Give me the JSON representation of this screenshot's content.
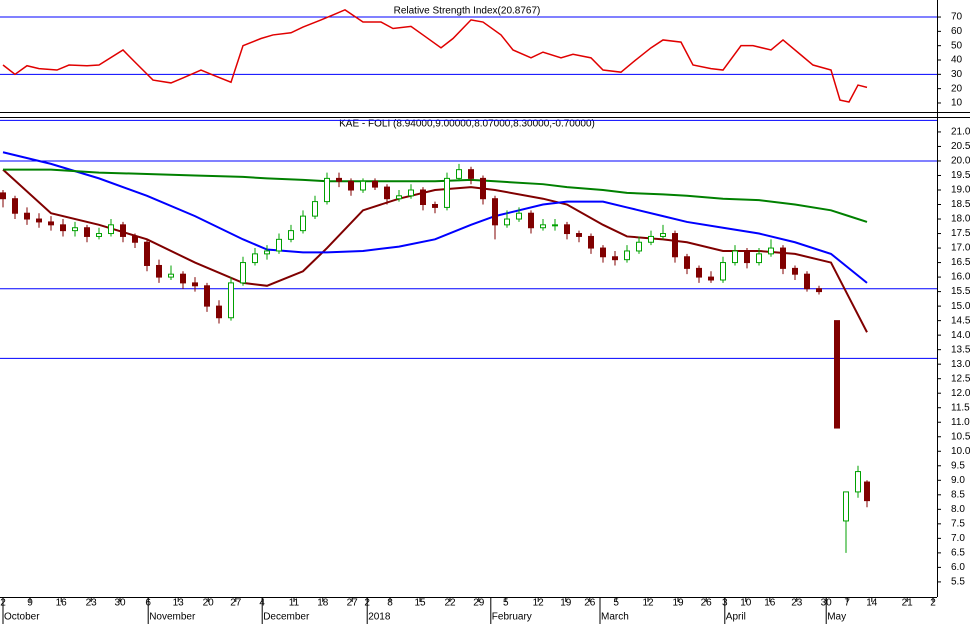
{
  "chart_data": [
    {
      "type": "line",
      "title": "Relative Strength Index(20.8767)",
      "color": "#e00000",
      "hline_color": "#0000ff",
      "xlim": [
        0,
        155
      ],
      "ylim": [
        3.7,
        78.4
      ],
      "yticks": [
        10,
        20,
        30,
        40,
        50,
        60,
        70
      ],
      "hlines": [
        70,
        30
      ],
      "x": [
        0,
        2,
        4,
        6,
        9,
        11,
        14,
        16,
        20,
        22,
        25,
        28,
        30,
        33,
        35,
        38,
        40,
        43,
        45,
        48,
        50,
        53,
        55,
        57,
        60,
        63,
        65,
        68,
        70,
        73,
        75,
        78,
        80,
        83,
        85,
        88,
        90,
        93,
        95,
        98,
        100,
        103,
        105,
        108,
        110,
        113,
        115,
        118,
        120,
        123,
        125,
        128,
        130,
        133,
        135,
        138,
        139.5,
        141,
        142.5,
        144
      ],
      "values": [
        36.5,
        30,
        36,
        34,
        33,
        36.5,
        36,
        36.5,
        47,
        38.5,
        26,
        24,
        27.5,
        33,
        29.5,
        24.5,
        50,
        55,
        57.5,
        59,
        63,
        68,
        71.5,
        75,
        66.5,
        66.5,
        62,
        63.5,
        57.5,
        48.5,
        55,
        68,
        66.5,
        57.5,
        47,
        41.5,
        45.5,
        41.5,
        44,
        41.5,
        33,
        31.5,
        38.5,
        48.5,
        54,
        52.5,
        36.5,
        34,
        33,
        50,
        50,
        47,
        54,
        43.5,
        36.5,
        33,
        12,
        10.7,
        22.5,
        20.9
      ]
    },
    {
      "type": "candlestick",
      "title": "KAE - FOLI (8.94000,9.00000,8.07000,8.30000,-0.70000)",
      "up_color": "#00a000",
      "down_color": "#800000",
      "hline_color": "#0000ff",
      "xlim": [
        0,
        155
      ],
      "ylim": [
        4.98,
        21.48
      ],
      "hlines": [
        21.4,
        20.0,
        15.6,
        13.2
      ],
      "yticks": [
        {
          "value": 5.5,
          "label": "5.5"
        },
        {
          "value": 6,
          "label": "6.0"
        },
        {
          "value": 6.5,
          "label": "6.5"
        },
        {
          "value": 7,
          "label": "7.0"
        },
        {
          "value": 7.5,
          "label": "7.5"
        },
        {
          "value": 8,
          "label": "8.0"
        },
        {
          "value": 8.5,
          "label": "8.5"
        },
        {
          "value": 9,
          "label": "9.0"
        },
        {
          "value": 9.5,
          "label": "9.5"
        },
        {
          "value": 10,
          "label": "10.0"
        },
        {
          "value": 10.5,
          "label": "10.5"
        },
        {
          "value": 11,
          "label": "11.0"
        },
        {
          "value": 11.5,
          "label": "11.5"
        },
        {
          "value": 12,
          "label": "12.0"
        },
        {
          "value": 12.5,
          "label": "12.5"
        },
        {
          "value": 13,
          "label": "13.0"
        },
        {
          "value": 13.5,
          "label": "13.5"
        },
        {
          "value": 14,
          "label": "14.0"
        },
        {
          "value": 14.5,
          "label": "14.5"
        },
        {
          "value": 15,
          "label": "15.0"
        },
        {
          "value": 15.5,
          "label": "15.5"
        },
        {
          "value": 16,
          "label": "16.0"
        },
        {
          "value": 16.5,
          "label": "16.5"
        },
        {
          "value": 17,
          "label": "17.0"
        },
        {
          "value": 17.5,
          "label": "17.5"
        },
        {
          "value": 18,
          "label": "18.0"
        },
        {
          "value": 18.5,
          "label": "18.5"
        },
        {
          "value": 19,
          "label": "19.0"
        },
        {
          "value": 19.5,
          "label": "19.5"
        },
        {
          "value": 20,
          "label": "20.0"
        },
        {
          "value": 20.5,
          "label": "20.5"
        },
        {
          "value": 21,
          "label": "21.0"
        }
      ],
      "xticks": [
        {
          "value": 0,
          "label": "2"
        },
        {
          "value": 4.5,
          "label": "9"
        },
        {
          "value": 9.7,
          "label": "16"
        },
        {
          "value": 14.7,
          "label": "23"
        },
        {
          "value": 19.5,
          "label": "30"
        },
        {
          "value": 24.2,
          "label": "6"
        },
        {
          "value": 29.2,
          "label": "13"
        },
        {
          "value": 34.2,
          "label": "20"
        },
        {
          "value": 38.8,
          "label": "27"
        },
        {
          "value": 43.2,
          "label": "4"
        },
        {
          "value": 48.5,
          "label": "11"
        },
        {
          "value": 53.3,
          "label": "18"
        },
        {
          "value": 58.2,
          "label": "27"
        },
        {
          "value": 60.7,
          "label": "2"
        },
        {
          "value": 64.5,
          "label": "8"
        },
        {
          "value": 69.5,
          "label": "15"
        },
        {
          "value": 74.5,
          "label": "22"
        },
        {
          "value": 79.3,
          "label": "29"
        },
        {
          "value": 83.8,
          "label": "5"
        },
        {
          "value": 89.2,
          "label": "12"
        },
        {
          "value": 93.8,
          "label": "19"
        },
        {
          "value": 97.8,
          "label": "26"
        },
        {
          "value": 102.2,
          "label": "5"
        },
        {
          "value": 107.5,
          "label": "12"
        },
        {
          "value": 112.5,
          "label": "19"
        },
        {
          "value": 117.2,
          "label": "26"
        },
        {
          "value": 120.3,
          "label": "3"
        },
        {
          "value": 123.8,
          "label": "10"
        },
        {
          "value": 127.8,
          "label": "16"
        },
        {
          "value": 132.3,
          "label": "23"
        },
        {
          "value": 137.2,
          "label": "30"
        },
        {
          "value": 140.7,
          "label": "7"
        },
        {
          "value": 144.8,
          "label": "14"
        },
        {
          "value": 150.7,
          "label": "21"
        },
        {
          "value": 155,
          "label": "2"
        }
      ],
      "month_ticks": [
        {
          "value": 0,
          "label": "October"
        },
        {
          "value": 24.2,
          "label": "November"
        },
        {
          "value": 43.2,
          "label": "December"
        },
        {
          "value": 60.7,
          "label": "2018"
        },
        {
          "value": 81.3,
          "label": "February"
        },
        {
          "value": 99.5,
          "label": "March"
        },
        {
          "value": 120.3,
          "label": "April"
        },
        {
          "value": 137.2,
          "label": "May"
        }
      ],
      "candles": [
        [
          0,
          18.9,
          19.0,
          18.4,
          18.7
        ],
        [
          2,
          18.7,
          18.8,
          18.0,
          18.2
        ],
        [
          4,
          18.2,
          18.4,
          17.8,
          18.0
        ],
        [
          6,
          18.0,
          18.2,
          17.7,
          17.9
        ],
        [
          8,
          17.9,
          18.1,
          17.6,
          17.8
        ],
        [
          10,
          17.8,
          18.0,
          17.4,
          17.6
        ],
        [
          12,
          17.6,
          17.9,
          17.4,
          17.7
        ],
        [
          14,
          17.7,
          17.8,
          17.2,
          17.4
        ],
        [
          16,
          17.4,
          17.7,
          17.3,
          17.5
        ],
        [
          18,
          17.5,
          18.0,
          17.4,
          17.8
        ],
        [
          20,
          17.8,
          17.9,
          17.2,
          17.4
        ],
        [
          22,
          17.4,
          17.5,
          17.0,
          17.2
        ],
        [
          24,
          17.2,
          17.3,
          16.2,
          16.4
        ],
        [
          26,
          16.4,
          16.6,
          15.8,
          16.0
        ],
        [
          28,
          16.0,
          16.4,
          15.9,
          16.1
        ],
        [
          30,
          16.1,
          16.2,
          15.6,
          15.8
        ],
        [
          32,
          15.8,
          16.0,
          15.5,
          15.7
        ],
        [
          34,
          15.7,
          15.8,
          14.8,
          15.0
        ],
        [
          36,
          15.0,
          15.2,
          14.4,
          14.6
        ],
        [
          38,
          14.6,
          16.0,
          14.5,
          15.8
        ],
        [
          40,
          15.8,
          16.7,
          15.7,
          16.5
        ],
        [
          42,
          16.5,
          17.0,
          16.4,
          16.8
        ],
        [
          44,
          16.8,
          17.1,
          16.6,
          16.9
        ],
        [
          46,
          16.9,
          17.5,
          16.8,
          17.3
        ],
        [
          48,
          17.3,
          17.8,
          17.2,
          17.6
        ],
        [
          50,
          17.6,
          18.3,
          17.5,
          18.1
        ],
        [
          52,
          18.1,
          18.8,
          18.0,
          18.6
        ],
        [
          54,
          18.6,
          19.6,
          18.5,
          19.4
        ],
        [
          56,
          19.4,
          19.6,
          19.1,
          19.3
        ],
        [
          58,
          19.3,
          19.4,
          18.8,
          19.0
        ],
        [
          60,
          19.0,
          19.4,
          18.9,
          19.3
        ],
        [
          62,
          19.3,
          19.4,
          19.0,
          19.1
        ],
        [
          64,
          19.1,
          19.2,
          18.5,
          18.7
        ],
        [
          66,
          18.7,
          19.0,
          18.6,
          18.8
        ],
        [
          68,
          18.8,
          19.2,
          18.7,
          19.0
        ],
        [
          70,
          19.0,
          19.1,
          18.3,
          18.5
        ],
        [
          72,
          18.5,
          18.6,
          18.2,
          18.4
        ],
        [
          74,
          18.4,
          19.6,
          18.3,
          19.4
        ],
        [
          76,
          19.4,
          19.9,
          19.3,
          19.7
        ],
        [
          78,
          19.7,
          19.8,
          19.2,
          19.4
        ],
        [
          80,
          19.4,
          19.5,
          18.5,
          18.7
        ],
        [
          82,
          18.7,
          18.8,
          17.3,
          17.8
        ],
        [
          84,
          17.8,
          18.3,
          17.7,
          18.0
        ],
        [
          86,
          18.0,
          18.4,
          17.9,
          18.2
        ],
        [
          88,
          18.2,
          18.3,
          17.5,
          17.7
        ],
        [
          90,
          17.7,
          18.0,
          17.6,
          17.8
        ],
        [
          92,
          17.8,
          18.0,
          17.6,
          17.8
        ],
        [
          94,
          17.8,
          17.9,
          17.3,
          17.5
        ],
        [
          96,
          17.5,
          17.6,
          17.2,
          17.4
        ],
        [
          98,
          17.4,
          17.5,
          16.8,
          17.0
        ],
        [
          100,
          17.0,
          17.1,
          16.5,
          16.7
        ],
        [
          102,
          16.7,
          16.9,
          16.4,
          16.6
        ],
        [
          104,
          16.6,
          17.1,
          16.5,
          16.9
        ],
        [
          106,
          16.9,
          17.4,
          16.8,
          17.2
        ],
        [
          108,
          17.2,
          17.6,
          17.1,
          17.4
        ],
        [
          110,
          17.4,
          17.8,
          17.3,
          17.5
        ],
        [
          112,
          17.5,
          17.6,
          16.5,
          16.7
        ],
        [
          114,
          16.7,
          16.8,
          16.1,
          16.3
        ],
        [
          116,
          16.3,
          16.4,
          15.8,
          16.0
        ],
        [
          118,
          16.0,
          16.2,
          15.8,
          15.9
        ],
        [
          120,
          15.9,
          16.7,
          15.8,
          16.5
        ],
        [
          122,
          16.5,
          17.1,
          16.4,
          16.9
        ],
        [
          124,
          16.9,
          17.0,
          16.3,
          16.5
        ],
        [
          126,
          16.5,
          17.0,
          16.4,
          16.8
        ],
        [
          128,
          16.8,
          17.3,
          16.7,
          17.0
        ],
        [
          130,
          17.0,
          17.1,
          16.1,
          16.3
        ],
        [
          132,
          16.3,
          16.4,
          15.9,
          16.1
        ],
        [
          134,
          16.1,
          16.2,
          15.5,
          15.6
        ],
        [
          136,
          15.6,
          15.7,
          15.4,
          15.5
        ],
        [
          139,
          14.5,
          14.5,
          10.8,
          10.8
        ],
        [
          140.5,
          7.6,
          8.6,
          6.5,
          8.6
        ],
        [
          142.5,
          8.6,
          9.5,
          8.4,
          9.3
        ],
        [
          144,
          8.94,
          9.0,
          8.07,
          8.3
        ]
      ],
      "averages": {
        "x": [
          0,
          8,
          16,
          24,
          32,
          40,
          44,
          50,
          54,
          60,
          66,
          72,
          78,
          82,
          90,
          94,
          100,
          104,
          110,
          114,
          120,
          126,
          132,
          138,
          141,
          144
        ],
        "series": [
          {
            "color": "#800000",
            "values": [
              19.7,
              18.2,
              17.8,
              17.3,
              16.5,
              15.8,
              15.7,
              16.2,
              17.0,
              18.3,
              18.7,
              19.0,
              19.1,
              19.0,
              18.7,
              18.5,
              17.8,
              17.4,
              17.3,
              17.2,
              16.9,
              16.9,
              16.8,
              16.5,
              15.3,
              14.1
            ]
          },
          {
            "color": "#0000ff",
            "values": [
              20.3,
              19.9,
              19.4,
              18.8,
              18.1,
              17.3,
              16.95,
              16.85,
              16.85,
              16.9,
              17.05,
              17.3,
              17.8,
              18.1,
              18.5,
              18.6,
              18.6,
              18.4,
              18.1,
              17.9,
              17.7,
              17.5,
              17.2,
              16.8,
              16.3,
              15.8
            ]
          },
          {
            "color": "#008000",
            "values": [
              19.7,
              19.7,
              19.6,
              19.55,
              19.5,
              19.45,
              19.4,
              19.35,
              19.3,
              19.3,
              19.3,
              19.3,
              19.35,
              19.3,
              19.2,
              19.1,
              19.0,
              18.9,
              18.85,
              18.8,
              18.7,
              18.65,
              18.5,
              18.3,
              18.1,
              17.9
            ]
          }
        ]
      }
    }
  ]
}
